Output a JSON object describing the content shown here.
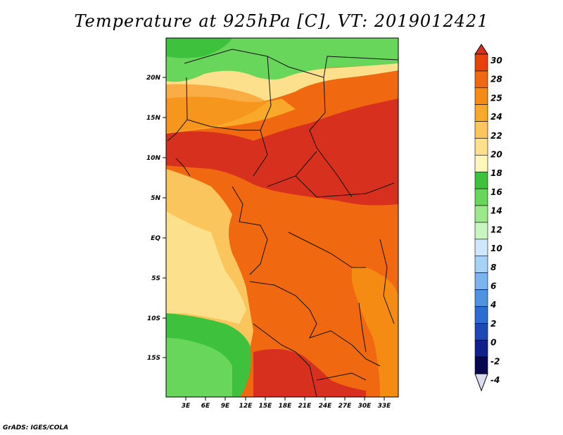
{
  "title": "Temperature at 925hPa [C], VT: 2019012421",
  "credit": "GrADS: IGES/COLA",
  "map": {
    "lon_labels": [
      "3E",
      "6E",
      "9E",
      "12E",
      "15E",
      "18E",
      "21E",
      "24E",
      "27E",
      "30E",
      "33E"
    ],
    "lat_labels": [
      "20N",
      "15N",
      "10N",
      "5N",
      "EQ",
      "5S",
      "10S",
      "15S"
    ]
  },
  "colorbar": {
    "labels": [
      "30",
      "28",
      "25",
      "24",
      "22",
      "20",
      "18",
      "16",
      "14",
      "12",
      "10",
      "8",
      "6",
      "4",
      "2",
      "0",
      "-2",
      "-4"
    ],
    "colors": [
      "#d7301f",
      "#e8410b",
      "#f06910",
      "#f68b14",
      "#f8a929",
      "#fbc55d",
      "#fde08c",
      "#fff6bb",
      "#3ec23e",
      "#68d65a",
      "#9be98a",
      "#c8f5c0",
      "#cfe7fb",
      "#a6d2f6",
      "#7bb4ee",
      "#4f92e2",
      "#2c6dd3",
      "#1d48b5",
      "#10218e",
      "#070650",
      "#dbdcf2"
    ]
  },
  "legend_colors": {
    "hot": "#d7301f",
    "orange": "#f06910",
    "yellow": "#fde08c",
    "green": "#3ec23e",
    "light_green": "#9be98a"
  }
}
